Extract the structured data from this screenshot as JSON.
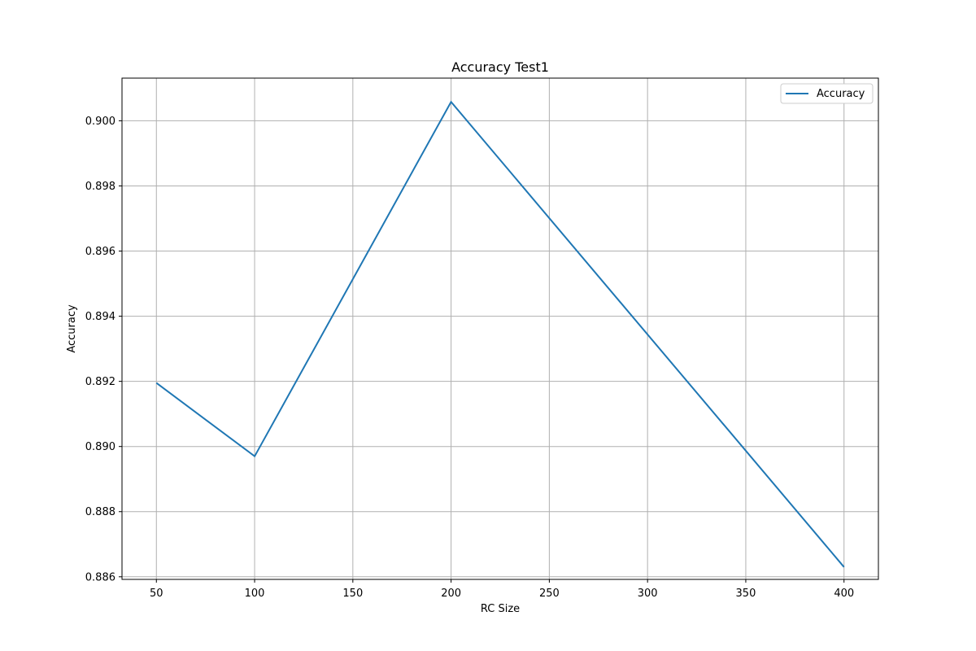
{
  "chart_data": {
    "type": "line",
    "title": "Accuracy Test1",
    "xlabel": "RC Size",
    "ylabel": "Accuracy",
    "x": [
      50,
      100,
      200,
      400
    ],
    "series": [
      {
        "name": "Accuracy",
        "values": [
          0.89195,
          0.8897,
          0.90058,
          0.8863
        ],
        "color": "#1f77b4"
      }
    ],
    "xticks": [
      50,
      100,
      150,
      200,
      250,
      300,
      350,
      400
    ],
    "xtick_labels": [
      "50",
      "100",
      "150",
      "200",
      "250",
      "300",
      "350",
      "400"
    ],
    "yticks": [
      0.886,
      0.888,
      0.89,
      0.892,
      0.894,
      0.896,
      0.898,
      0.9
    ],
    "ytick_labels": [
      "0.886",
      "0.888",
      "0.890",
      "0.892",
      "0.894",
      "0.896",
      "0.898",
      "0.900"
    ],
    "xlim": [
      32.5,
      417.5
    ],
    "ylim": [
      0.88592,
      0.90131
    ],
    "grid": true,
    "legend_position": "top-right"
  }
}
